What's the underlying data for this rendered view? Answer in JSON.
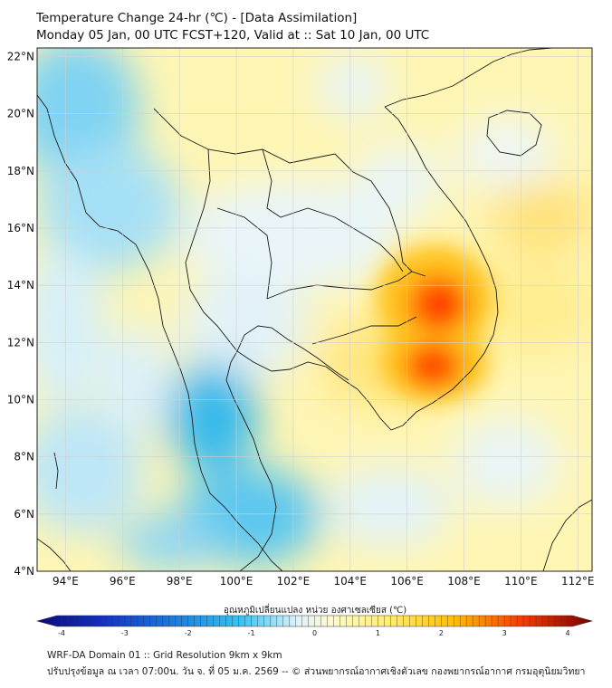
{
  "title_line1": "Temperature Change 24-hr (℃) - [Data Assimilation]",
  "title_line2": "Monday 05 Jan, 00 UTC FCST+120, Valid at :: Sat 10 Jan, 00 UTC",
  "map": {
    "lon_ticks": [
      94,
      96,
      98,
      100,
      102,
      104,
      106,
      108,
      110,
      112
    ],
    "lon_labels": [
      "94°E",
      "96°E",
      "98°E",
      "100°E",
      "102°E",
      "104°E",
      "106°E",
      "108°E",
      "110°E",
      "112°E"
    ],
    "lat_ticks": [
      4,
      6,
      8,
      10,
      12,
      14,
      16,
      18,
      20,
      22
    ],
    "lat_labels": [
      "4°N",
      "6°N",
      "8°N",
      "10°N",
      "12°N",
      "14°N",
      "16°N",
      "18°N",
      "20°N",
      "22°N"
    ],
    "lon_range": [
      93,
      112.5
    ],
    "lat_range": [
      4,
      22.3
    ],
    "colors": {
      "cold": "#1ab0e8",
      "neutral": "#e6f4fb",
      "warm": "#fff07a",
      "hot": "#ff2a00",
      "extreme": "#b00000"
    }
  },
  "colorbar": {
    "label": "อุณหภูมิเปลี่ยนแปลง หน่วย องศาเซลเซียส (℃)",
    "min": -4,
    "max": 4,
    "ticks": [
      "-4",
      "-3",
      "-2",
      "-1",
      "0",
      "1",
      "2",
      "3",
      "4"
    ]
  },
  "footer_line1": "WRF-DA Domain 01 :: Grid Resolution 9km x 9km",
  "footer_line2": "ปรับปรุงข้อมูล ณ เวลา 07:00น. วัน จ. ที่ 05 ม.ค. 2569 -- © ส่วนพยากรณ์อากาศเชิงตัวเลข กองพยากรณ์อากาศ กรมอุตุนิยมวิทยา"
}
